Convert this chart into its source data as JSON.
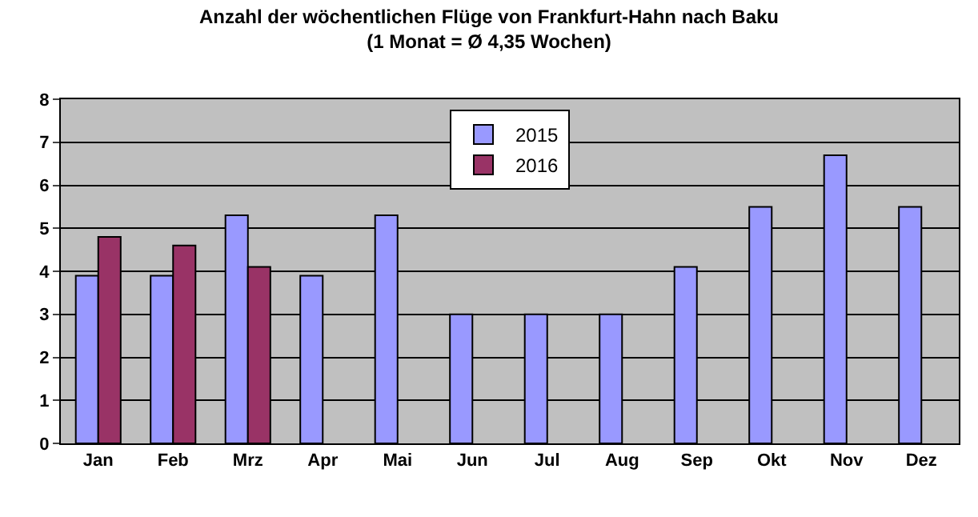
{
  "chart_data": {
    "type": "bar",
    "title": "Anzahl der wöchentlichen Flüge von Frankfurt-Hahn nach Baku\n(1 Monat = Ø 4,35 Wochen)",
    "categories": [
      "Jan",
      "Feb",
      "Mrz",
      "Apr",
      "Mai",
      "Jun",
      "Jul",
      "Aug",
      "Sep",
      "Okt",
      "Nov",
      "Dez"
    ],
    "series": [
      {
        "name": "2015",
        "color": "#9999ff",
        "values": [
          3.9,
          3.9,
          5.3,
          3.9,
          5.3,
          3.0,
          3.0,
          3.0,
          4.1,
          5.5,
          6.7,
          5.5
        ]
      },
      {
        "name": "2016",
        "color": "#993366",
        "values": [
          4.8,
          4.6,
          4.1,
          null,
          null,
          null,
          null,
          null,
          null,
          null,
          null,
          null
        ]
      }
    ],
    "ylim": [
      0,
      8
    ],
    "yticks": [
      0,
      1,
      2,
      3,
      4,
      5,
      6,
      7,
      8
    ],
    "grid": "y",
    "legend": "top"
  }
}
